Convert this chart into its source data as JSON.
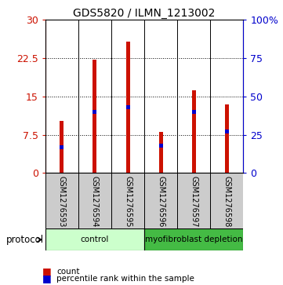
{
  "title": "GDS5820 / ILMN_1213002",
  "samples": [
    "GSM1276593",
    "GSM1276594",
    "GSM1276595",
    "GSM1276596",
    "GSM1276597",
    "GSM1276598"
  ],
  "counts": [
    10.2,
    22.2,
    25.8,
    8.0,
    16.2,
    13.5
  ],
  "percentile_ranks": [
    17.0,
    40.0,
    43.0,
    18.0,
    40.0,
    27.0
  ],
  "bar_color": "#cc1100",
  "pct_color": "#0000cc",
  "ylim_left": [
    0,
    30
  ],
  "ylim_right": [
    0,
    100
  ],
  "yticks_left": [
    0,
    7.5,
    15,
    22.5,
    30
  ],
  "ytick_labels_left": [
    "0",
    "7.5",
    "15",
    "22.5",
    "30"
  ],
  "yticks_right": [
    0,
    25,
    50,
    75,
    100
  ],
  "ytick_labels_right": [
    "0",
    "25",
    "50",
    "75",
    "100%"
  ],
  "groups": [
    {
      "label": "control",
      "indices": [
        0,
        1,
        2
      ],
      "color": "#ccffcc"
    },
    {
      "label": "myofibroblast depletion",
      "indices": [
        3,
        4,
        5
      ],
      "color": "#44bb44"
    }
  ],
  "protocol_label": "protocol",
  "legend_count_label": "count",
  "legend_pct_label": "percentile rank within the sample",
  "bg_color": "#ffffff",
  "sample_bg_color": "#cccccc",
  "bar_width": 0.12
}
